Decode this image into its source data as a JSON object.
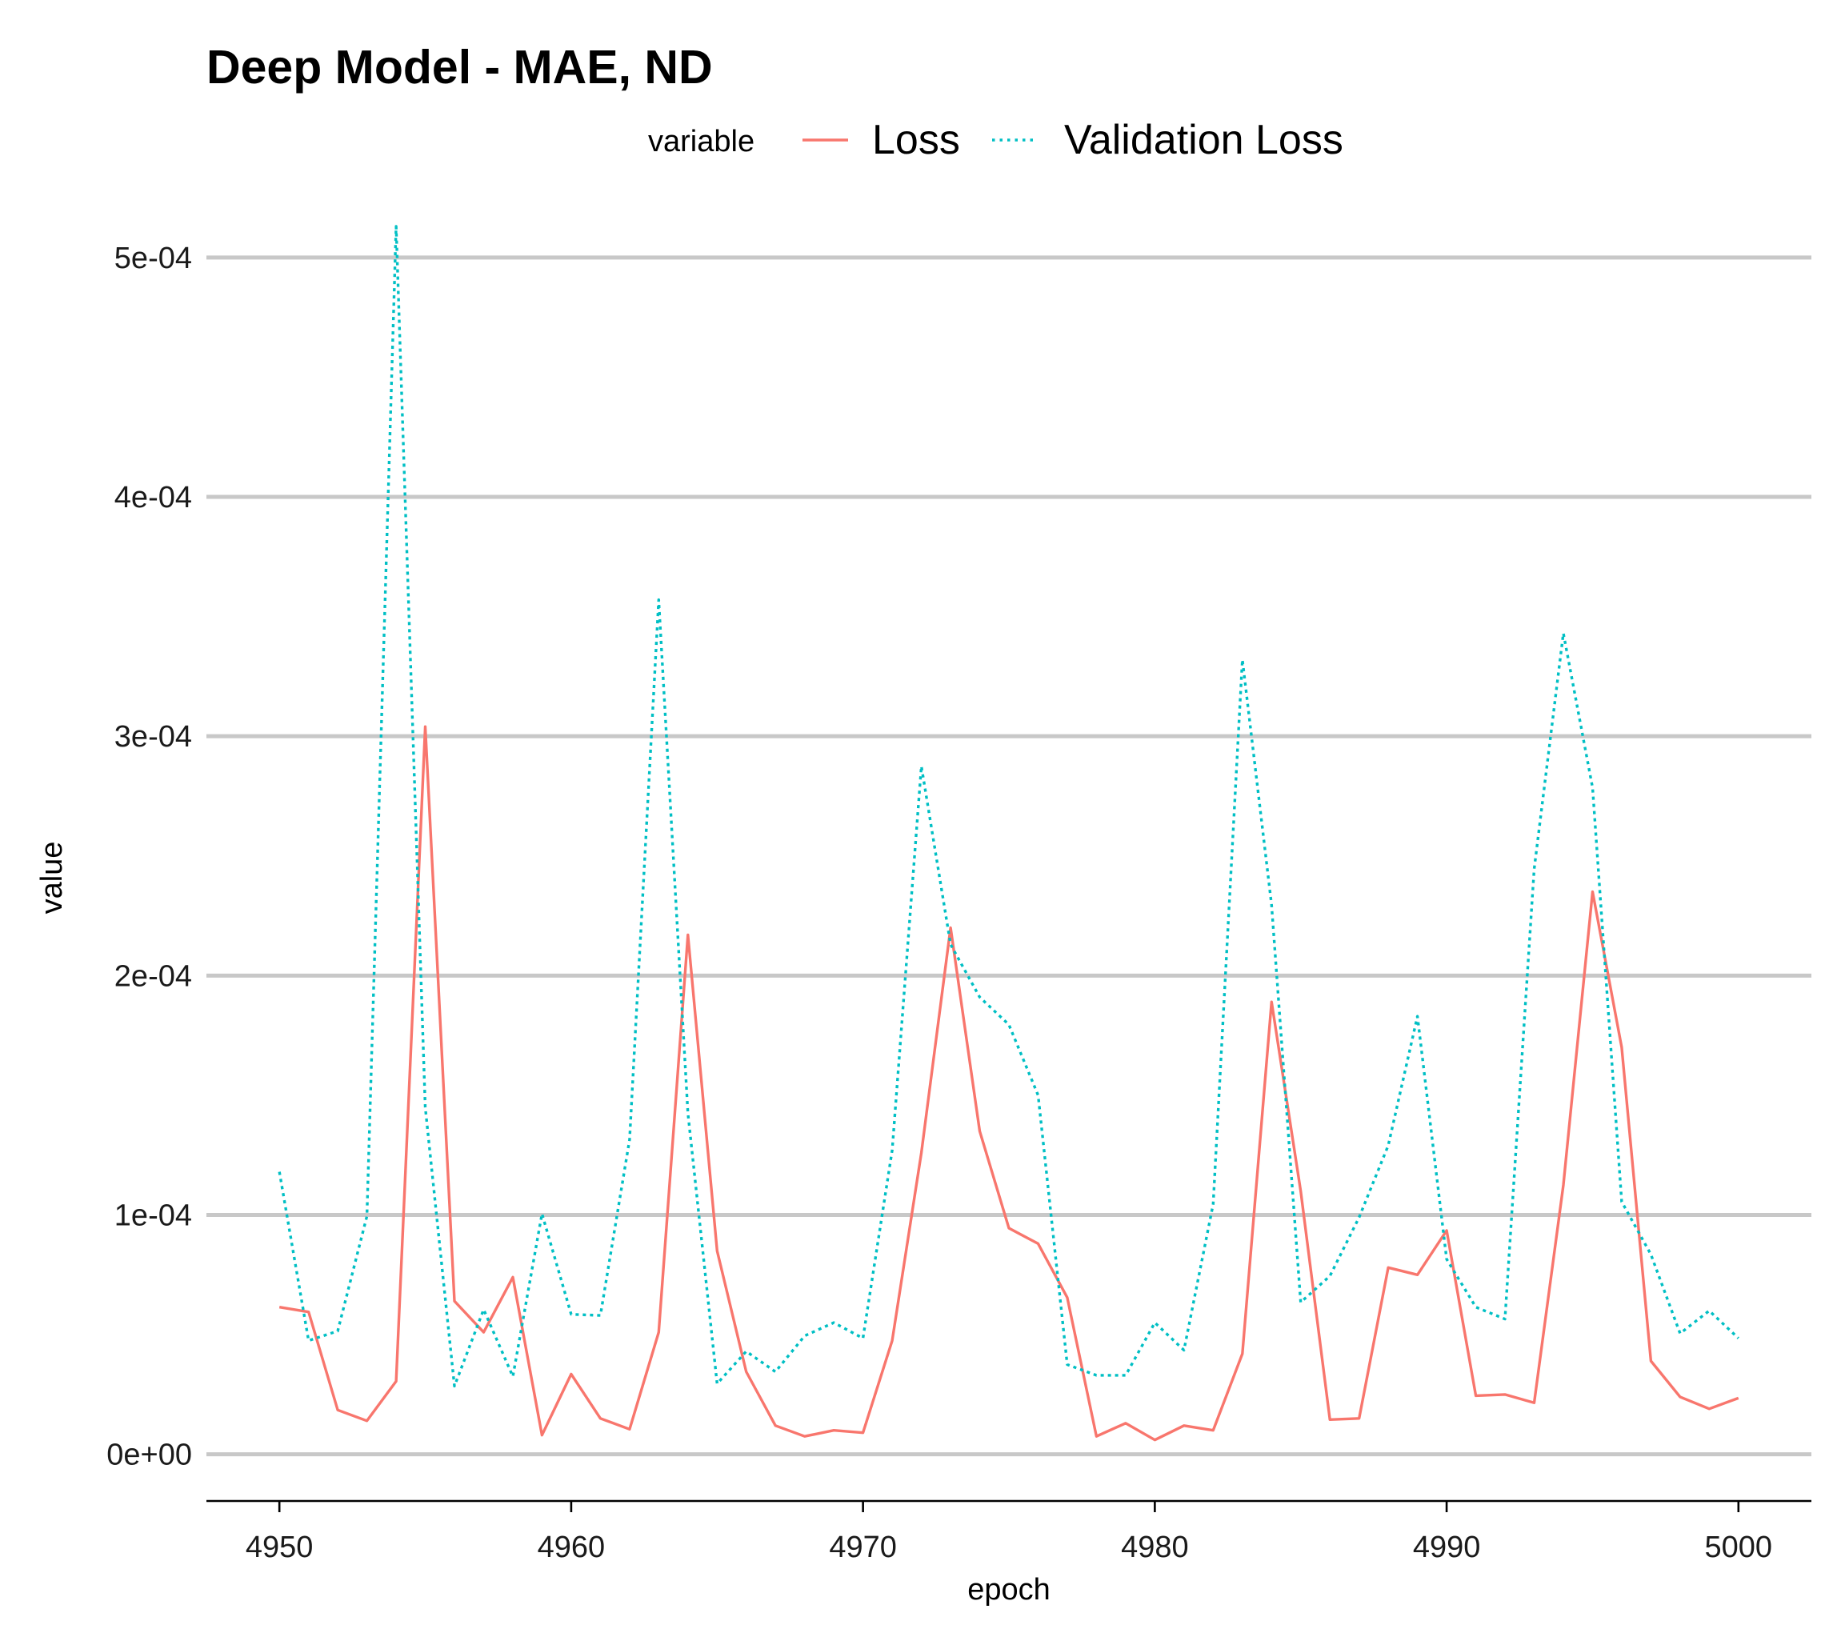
{
  "chart_data": {
    "type": "line",
    "title": "Deep Model - MAE, ND",
    "xlabel": "epoch",
    "ylabel": "value",
    "legend": {
      "title": "variable",
      "position": "top",
      "entries": [
        "Loss",
        "Validation Loss"
      ]
    },
    "xlim": [
      4947.5,
      5002.5
    ],
    "ylim": [
      -1.95e-05,
      0.00052
    ],
    "x_ticks": [
      4950,
      4960,
      4970,
      4980,
      4990,
      5000
    ],
    "x_tick_labels": [
      "4950",
      "4960",
      "4970",
      "4980",
      "4990",
      "5000"
    ],
    "y_ticks": [
      0,
      0.0001,
      0.0002,
      0.0003,
      0.0004,
      0.0005
    ],
    "y_tick_labels": [
      "0e+00",
      "1e-04",
      "2e-04",
      "3e-04",
      "4e-04",
      "5e-04"
    ],
    "grid": "horizontal major",
    "x": [
      4950,
      4951,
      4952,
      4953,
      4954,
      4955,
      4956,
      4957,
      4958,
      4959,
      4960,
      4961,
      4962,
      4963,
      4964,
      4965,
      4966,
      4967,
      4968,
      4969,
      4970,
      4971,
      4972,
      4973,
      4974,
      4975,
      4976,
      4977,
      4978,
      4979,
      4980,
      4981,
      4982,
      4983,
      4984,
      4985,
      4986,
      4987,
      4988,
      4989,
      4990,
      4991,
      4992,
      4993,
      4994,
      4995,
      4996,
      4997,
      4998,
      4999,
      5000
    ],
    "series": [
      {
        "name": "Loss",
        "color": "#F8766D",
        "style": "solid",
        "values": [
          6.15e-05,
          5.95e-05,
          1.85e-05,
          1.4e-05,
          3.05e-05,
          0.000304,
          6.4e-05,
          5.1e-05,
          7.4e-05,
          8e-06,
          3.35e-05,
          1.5e-05,
          1.05e-05,
          5.1e-05,
          0.000217,
          8.5e-05,
          3.45e-05,
          1.2e-05,
          7.5e-06,
          1e-05,
          9e-06,
          4.75e-05,
          0.000126,
          0.00022,
          0.000135,
          9.45e-05,
          8.8e-05,
          6.55e-05,
          7.5e-06,
          1.3e-05,
          6e-06,
          1.2e-05,
          1e-05,
          4.2e-05,
          0.000189,
          0.00011,
          1.45e-05,
          1.5e-05,
          7.8e-05,
          7.5e-05,
          9.35e-05,
          2.45e-05,
          2.5e-05,
          2.15e-05,
          0.0001125,
          0.000235,
          0.00017,
          3.9e-05,
          2.4e-05,
          1.9e-05,
          2.35e-05
        ]
      },
      {
        "name": "Validation Loss",
        "color": "#00BFC4",
        "style": "dotted",
        "values": [
          0.000118,
          4.75e-05,
          5.15e-05,
          9.95e-05,
          0.000513,
          0.000145,
          2.85e-05,
          6.05e-05,
          3.25e-05,
          0.0001005,
          5.85e-05,
          5.8e-05,
          0.0001315,
          0.000357,
          0.0001425,
          2.95e-05,
          4.3e-05,
          3.45e-05,
          4.95e-05,
          5.5e-05,
          4.85e-05,
          0.000127,
          0.0002875,
          0.000213,
          0.000191,
          0.0001795,
          0.00015,
          3.75e-05,
          3.3e-05,
          3.3e-05,
          5.5e-05,
          4.35e-05,
          0.0001045,
          0.000332,
          0.0002295,
          6.35e-05,
          7.45e-05,
          9.9e-05,
          0.000129,
          0.000183,
          8.15e-05,
          6.15e-05,
          5.65e-05,
          0.0002445,
          0.000343,
          0.0002785,
          0.0001055,
          8.35e-05,
          5.05e-05,
          6e-05,
          4.85e-05
        ]
      }
    ]
  }
}
